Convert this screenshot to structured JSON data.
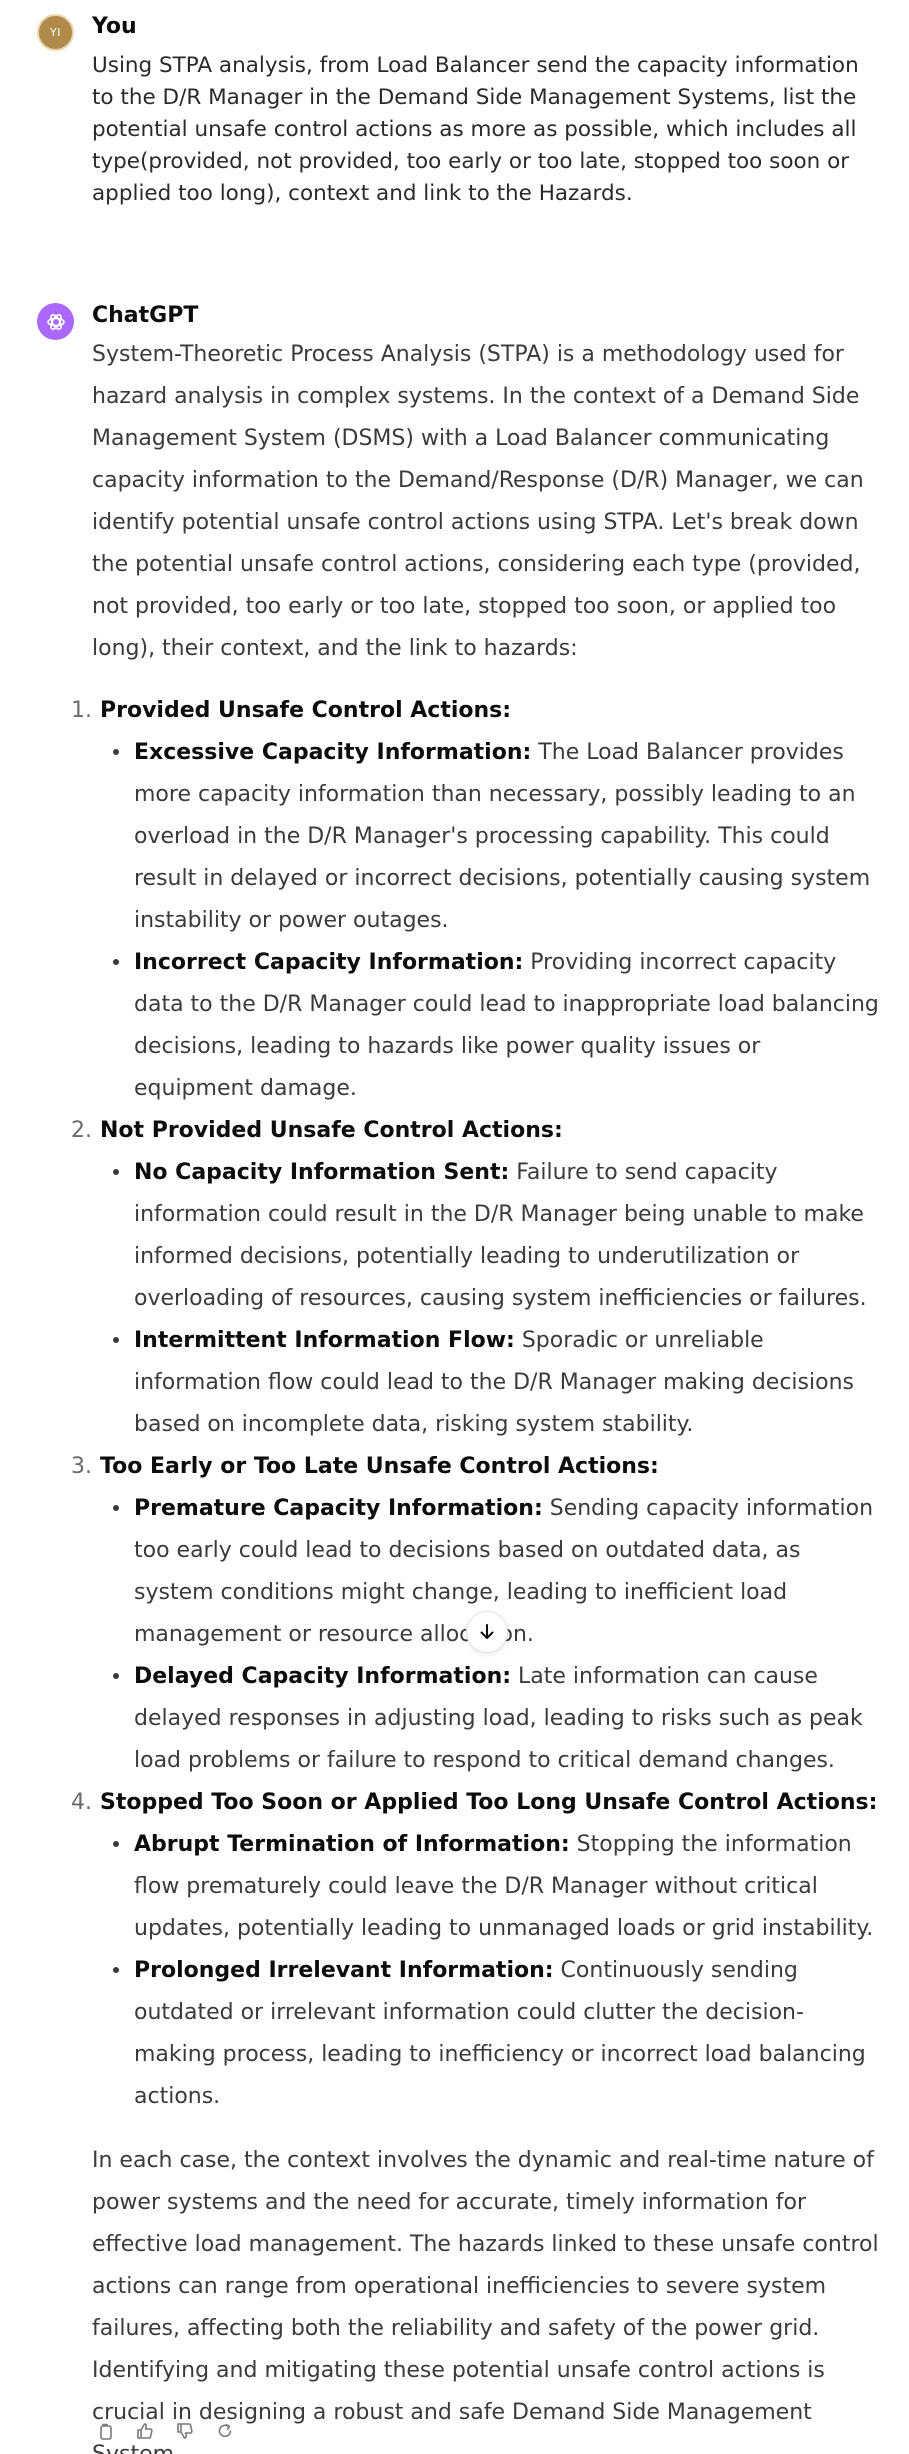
{
  "user_message": {
    "avatar_initials": "YI",
    "author": "You",
    "text": "Using STPA analysis, from Load Balancer send the capacity information to the D/R Manager in the Demand Side Management Systems, list the potential unsafe control actions as more as possible, which includes all type(provided, not provided, too early or too late, stopped too soon or applied too long), context and link to the Hazards."
  },
  "assistant_message": {
    "author": "ChatGPT",
    "intro": "System-Theoretic Process Analysis (STPA) is a methodology used for hazard analysis in complex systems. In the context of a Demand Side Management System (DSMS) with a Load Balancer communicating capacity information to the Demand/Response (D/R) Manager, we can identify potential unsafe control actions using STPA. Let's break down the potential unsafe control actions, considering each type (provided, not provided, too early or too late, stopped too soon, or applied too long), their context, and the link to hazards:",
    "sections": [
      {
        "number": "1.",
        "title": "Provided Unsafe Control Actions:",
        "items": [
          {
            "title": "Excessive Capacity Information:",
            "text": " The Load Balancer provides more capacity information than necessary, possibly leading to an overload in the D/R Manager's processing capability. This could result in delayed or incorrect decisions, potentially causing system instability or power outages."
          },
          {
            "title": "Incorrect Capacity Information:",
            "text": " Providing incorrect capacity data to the D/R Manager could lead to inappropriate load balancing decisions, leading to hazards like power quality issues or equipment damage."
          }
        ]
      },
      {
        "number": "2.",
        "title": "Not Provided Unsafe Control Actions:",
        "items": [
          {
            "title": "No Capacity Information Sent:",
            "text": " Failure to send capacity information could result in the D/R Manager being unable to make informed decisions, potentially leading to underutilization or overloading of resources, causing system inefficiencies or failures."
          },
          {
            "title": "Intermittent Information Flow:",
            "text": " Sporadic or unreliable information flow could lead to the D/R Manager making decisions based on incomplete data, risking system stability."
          }
        ]
      },
      {
        "number": "3.",
        "title": "Too Early or Too Late Unsafe Control Actions:",
        "items": [
          {
            "title": "Premature Capacity Information:",
            "text": " Sending capacity information too early could lead to decisions based on outdated data, as system conditions might change, leading to inefficient load management or resource allocation."
          },
          {
            "title": "Delayed Capacity Information:",
            "text": " Late information can cause delayed responses in adjusting load, leading to risks such as peak load problems or failure to respond to critical demand changes."
          }
        ]
      },
      {
        "number": "4.",
        "title": "Stopped Too Soon or Applied Too Long Unsafe Control Actions:",
        "items": [
          {
            "title": "Abrupt Termination of Information:",
            "text": " Stopping the information flow prematurely could leave the D/R Manager without critical updates, potentially leading to unmanaged loads or grid instability."
          },
          {
            "title": "Prolonged Irrelevant Information:",
            "text": " Continuously sending outdated or irrelevant information could clutter the decision-making process, leading to inefficiency or incorrect load balancing actions."
          }
        ]
      }
    ],
    "conclusion": "In each case, the context involves the dynamic and real-time nature of power systems and the need for accurate, timely information for effective load management. The hazards linked to these unsafe control actions can range from operational inefficiencies to severe system failures, affecting both the reliability and safety of the power grid. Identifying and mitigating these potential unsafe control actions is crucial in designing a robust and safe Demand Side Management System."
  },
  "icons": {
    "scroll": "arrow-down-icon",
    "actions": [
      "copy-icon",
      "thumbs-up-icon",
      "thumbs-down-icon",
      "regenerate-icon"
    ]
  },
  "colors": {
    "user_avatar": "#b08a4a",
    "gpt_avatar": "#ab68ff",
    "text": "#3b3b3b",
    "heading": "#0d0d0d"
  }
}
